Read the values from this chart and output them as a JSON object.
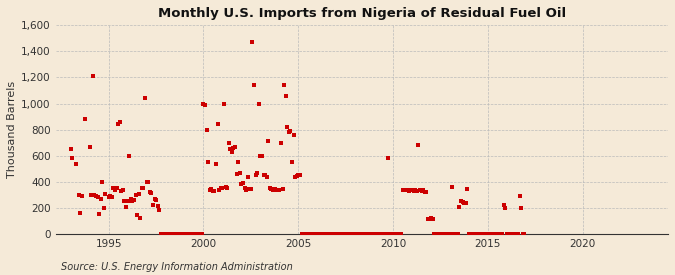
{
  "title": "Monthly U.S. Imports from Nigeria of Residual Fuel Oil",
  "ylabel": "Thousand Barrels",
  "source_text": "Source: U.S. Energy Information Administration",
  "background_color": "#f5ead8",
  "marker_color": "#cc0000",
  "marker_size": 5,
  "ylim": [
    0,
    1600
  ],
  "yticks": [
    0,
    200,
    400,
    600,
    800,
    1000,
    1200,
    1400,
    1600
  ],
  "xticks": [
    1995,
    2000,
    2005,
    2010,
    2015,
    2020
  ],
  "xlim_start": 1992.2,
  "xlim_end": 2024.5,
  "data_points": [
    [
      1993.0,
      650
    ],
    [
      1993.08,
      580
    ],
    [
      1993.25,
      540
    ],
    [
      1993.42,
      300
    ],
    [
      1993.5,
      160
    ],
    [
      1993.58,
      290
    ],
    [
      1993.75,
      880
    ],
    [
      1994.0,
      670
    ],
    [
      1994.08,
      300
    ],
    [
      1994.17,
      1210
    ],
    [
      1994.25,
      295
    ],
    [
      1994.33,
      290
    ],
    [
      1994.42,
      280
    ],
    [
      1994.5,
      155
    ],
    [
      1994.58,
      265
    ],
    [
      1994.67,
      400
    ],
    [
      1994.75,
      200
    ],
    [
      1994.83,
      310
    ],
    [
      1995.0,
      280
    ],
    [
      1995.08,
      290
    ],
    [
      1995.17,
      280
    ],
    [
      1995.25,
      350
    ],
    [
      1995.33,
      340
    ],
    [
      1995.42,
      350
    ],
    [
      1995.5,
      840
    ],
    [
      1995.58,
      855
    ],
    [
      1995.67,
      330
    ],
    [
      1995.75,
      340
    ],
    [
      1995.83,
      255
    ],
    [
      1995.92,
      210
    ],
    [
      1996.0,
      250
    ],
    [
      1996.08,
      600
    ],
    [
      1996.17,
      270
    ],
    [
      1996.25,
      250
    ],
    [
      1996.33,
      260
    ],
    [
      1996.42,
      295
    ],
    [
      1996.5,
      145
    ],
    [
      1996.58,
      305
    ],
    [
      1996.67,
      125
    ],
    [
      1996.75,
      350
    ],
    [
      1996.83,
      350
    ],
    [
      1996.92,
      1040
    ],
    [
      1997.0,
      400
    ],
    [
      1997.08,
      395
    ],
    [
      1997.17,
      320
    ],
    [
      1997.25,
      315
    ],
    [
      1997.33,
      225
    ],
    [
      1997.42,
      270
    ],
    [
      1997.5,
      260
    ],
    [
      1997.58,
      215
    ],
    [
      1997.67,
      185
    ],
    [
      1997.75,
      0
    ],
    [
      1997.83,
      0
    ],
    [
      1997.92,
      0
    ],
    [
      1998.0,
      0
    ],
    [
      1998.08,
      0
    ],
    [
      1998.17,
      0
    ],
    [
      1998.25,
      0
    ],
    [
      1998.33,
      0
    ],
    [
      1998.42,
      0
    ],
    [
      1998.5,
      0
    ],
    [
      1998.58,
      0
    ],
    [
      1998.67,
      0
    ],
    [
      1998.75,
      0
    ],
    [
      1998.83,
      0
    ],
    [
      1998.92,
      0
    ],
    [
      1999.0,
      0
    ],
    [
      1999.08,
      0
    ],
    [
      1999.17,
      0
    ],
    [
      1999.25,
      0
    ],
    [
      1999.33,
      0
    ],
    [
      1999.42,
      0
    ],
    [
      1999.5,
      0
    ],
    [
      1999.58,
      0
    ],
    [
      1999.67,
      0
    ],
    [
      1999.75,
      0
    ],
    [
      1999.83,
      0
    ],
    [
      1999.92,
      0
    ],
    [
      2000.0,
      1000
    ],
    [
      2000.08,
      985
    ],
    [
      2000.17,
      800
    ],
    [
      2000.25,
      555
    ],
    [
      2000.33,
      340
    ],
    [
      2000.42,
      345
    ],
    [
      2000.5,
      330
    ],
    [
      2000.58,
      330
    ],
    [
      2000.67,
      540
    ],
    [
      2000.75,
      840
    ],
    [
      2000.83,
      335
    ],
    [
      2000.92,
      350
    ],
    [
      2001.0,
      355
    ],
    [
      2001.08,
      1000
    ],
    [
      2001.17,
      360
    ],
    [
      2001.25,
      355
    ],
    [
      2001.33,
      695
    ],
    [
      2001.42,
      655
    ],
    [
      2001.5,
      630
    ],
    [
      2001.58,
      660
    ],
    [
      2001.67,
      665
    ],
    [
      2001.75,
      460
    ],
    [
      2001.83,
      555
    ],
    [
      2001.92,
      470
    ],
    [
      2002.0,
      385
    ],
    [
      2002.08,
      390
    ],
    [
      2002.17,
      350
    ],
    [
      2002.25,
      340
    ],
    [
      2002.33,
      440
    ],
    [
      2002.42,
      345
    ],
    [
      2002.5,
      345
    ],
    [
      2002.58,
      1470
    ],
    [
      2002.67,
      1145
    ],
    [
      2002.75,
      455
    ],
    [
      2002.83,
      465
    ],
    [
      2002.92,
      1000
    ],
    [
      2003.0,
      600
    ],
    [
      2003.08,
      600
    ],
    [
      2003.17,
      450
    ],
    [
      2003.25,
      455
    ],
    [
      2003.33,
      440
    ],
    [
      2003.42,
      710
    ],
    [
      2003.5,
      350
    ],
    [
      2003.58,
      345
    ],
    [
      2003.67,
      340
    ],
    [
      2003.75,
      345
    ],
    [
      2003.83,
      340
    ],
    [
      2003.92,
      340
    ],
    [
      2004.0,
      335
    ],
    [
      2004.08,
      700
    ],
    [
      2004.17,
      345
    ],
    [
      2004.25,
      1140
    ],
    [
      2004.33,
      1060
    ],
    [
      2004.42,
      820
    ],
    [
      2004.5,
      780
    ],
    [
      2004.58,
      790
    ],
    [
      2004.67,
      555
    ],
    [
      2004.75,
      760
    ],
    [
      2004.83,
      440
    ],
    [
      2004.92,
      445
    ],
    [
      2005.0,
      455
    ],
    [
      2005.08,
      450
    ],
    [
      2005.17,
      0
    ],
    [
      2005.25,
      0
    ],
    [
      2005.33,
      0
    ],
    [
      2005.42,
      0
    ],
    [
      2005.5,
      0
    ],
    [
      2005.58,
      0
    ],
    [
      2005.67,
      0
    ],
    [
      2005.75,
      0
    ],
    [
      2005.83,
      0
    ],
    [
      2005.92,
      0
    ],
    [
      2006.0,
      0
    ],
    [
      2006.08,
      0
    ],
    [
      2006.17,
      0
    ],
    [
      2006.25,
      0
    ],
    [
      2006.33,
      0
    ],
    [
      2006.42,
      0
    ],
    [
      2006.5,
      0
    ],
    [
      2006.58,
      0
    ],
    [
      2006.67,
      0
    ],
    [
      2006.75,
      0
    ],
    [
      2006.83,
      0
    ],
    [
      2006.92,
      0
    ],
    [
      2007.0,
      0
    ],
    [
      2007.08,
      0
    ],
    [
      2007.17,
      0
    ],
    [
      2007.25,
      0
    ],
    [
      2007.33,
      0
    ],
    [
      2007.42,
      0
    ],
    [
      2007.5,
      0
    ],
    [
      2007.58,
      0
    ],
    [
      2007.67,
      0
    ],
    [
      2007.75,
      0
    ],
    [
      2007.83,
      0
    ],
    [
      2007.92,
      0
    ],
    [
      2008.0,
      0
    ],
    [
      2008.08,
      0
    ],
    [
      2008.17,
      0
    ],
    [
      2008.25,
      0
    ],
    [
      2008.33,
      0
    ],
    [
      2008.42,
      0
    ],
    [
      2008.5,
      0
    ],
    [
      2008.58,
      0
    ],
    [
      2008.67,
      0
    ],
    [
      2008.75,
      0
    ],
    [
      2008.83,
      0
    ],
    [
      2008.92,
      0
    ],
    [
      2009.0,
      0
    ],
    [
      2009.08,
      0
    ],
    [
      2009.17,
      0
    ],
    [
      2009.25,
      0
    ],
    [
      2009.33,
      0
    ],
    [
      2009.42,
      0
    ],
    [
      2009.5,
      0
    ],
    [
      2009.58,
      0
    ],
    [
      2009.67,
      0
    ],
    [
      2009.75,
      580
    ],
    [
      2009.83,
      0
    ],
    [
      2009.92,
      0
    ],
    [
      2010.0,
      0
    ],
    [
      2010.08,
      0
    ],
    [
      2010.17,
      0
    ],
    [
      2010.25,
      0
    ],
    [
      2010.33,
      0
    ],
    [
      2010.42,
      0
    ],
    [
      2010.5,
      335
    ],
    [
      2010.58,
      340
    ],
    [
      2010.67,
      335
    ],
    [
      2010.75,
      335
    ],
    [
      2010.83,
      330
    ],
    [
      2010.92,
      340
    ],
    [
      2011.0,
      335
    ],
    [
      2011.08,
      330
    ],
    [
      2011.17,
      340
    ],
    [
      2011.25,
      330
    ],
    [
      2011.33,
      680
    ],
    [
      2011.42,
      335
    ],
    [
      2011.5,
      330
    ],
    [
      2011.58,
      335
    ],
    [
      2011.67,
      325
    ],
    [
      2011.75,
      325
    ],
    [
      2011.83,
      115
    ],
    [
      2011.92,
      115
    ],
    [
      2012.0,
      120
    ],
    [
      2012.08,
      115
    ],
    [
      2012.17,
      0
    ],
    [
      2012.25,
      0
    ],
    [
      2012.33,
      0
    ],
    [
      2012.42,
      0
    ],
    [
      2012.5,
      0
    ],
    [
      2012.58,
      0
    ],
    [
      2012.67,
      0
    ],
    [
      2012.75,
      0
    ],
    [
      2012.83,
      0
    ],
    [
      2012.92,
      0
    ],
    [
      2013.0,
      0
    ],
    [
      2013.08,
      360
    ],
    [
      2013.17,
      0
    ],
    [
      2013.25,
      0
    ],
    [
      2013.33,
      0
    ],
    [
      2013.42,
      0
    ],
    [
      2013.5,
      210
    ],
    [
      2013.58,
      255
    ],
    [
      2013.67,
      245
    ],
    [
      2013.75,
      240
    ],
    [
      2013.83,
      240
    ],
    [
      2013.92,
      345
    ],
    [
      2014.0,
      0
    ],
    [
      2014.08,
      0
    ],
    [
      2014.17,
      0
    ],
    [
      2014.25,
      0
    ],
    [
      2014.33,
      0
    ],
    [
      2014.42,
      0
    ],
    [
      2014.5,
      0
    ],
    [
      2014.58,
      0
    ],
    [
      2014.67,
      0
    ],
    [
      2014.75,
      0
    ],
    [
      2014.83,
      0
    ],
    [
      2014.92,
      0
    ],
    [
      2015.0,
      0
    ],
    [
      2015.08,
      0
    ],
    [
      2015.17,
      0
    ],
    [
      2015.25,
      0
    ],
    [
      2015.33,
      0
    ],
    [
      2015.42,
      0
    ],
    [
      2015.5,
      0
    ],
    [
      2015.58,
      0
    ],
    [
      2015.67,
      0
    ],
    [
      2015.75,
      0
    ],
    [
      2015.83,
      220
    ],
    [
      2015.92,
      200
    ],
    [
      2016.0,
      0
    ],
    [
      2016.08,
      0
    ],
    [
      2016.17,
      0
    ],
    [
      2016.25,
      0
    ],
    [
      2016.33,
      0
    ],
    [
      2016.42,
      0
    ],
    [
      2016.5,
      0
    ],
    [
      2016.58,
      0
    ],
    [
      2016.67,
      290
    ],
    [
      2016.75,
      200
    ],
    [
      2016.83,
      0
    ],
    [
      2016.92,
      0
    ]
  ]
}
